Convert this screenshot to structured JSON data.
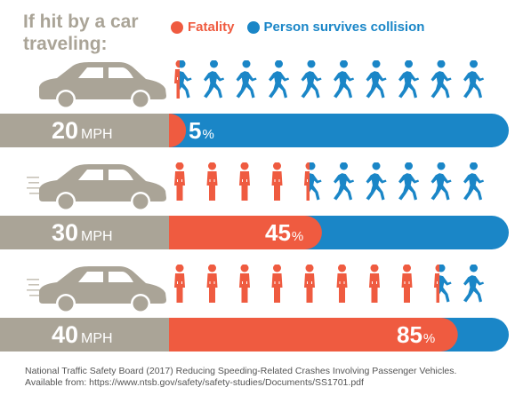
{
  "title": "If hit by a car\ntraveling:",
  "legend": {
    "fatality_label": "Fatality",
    "survive_label": "Person survives collision"
  },
  "colors": {
    "fatality": "#ef5b40",
    "survive": "#1a86c7",
    "gray": "#aaa497",
    "car": "#aaa497"
  },
  "rows": [
    {
      "speed": "20",
      "unit": "MPH",
      "percent": "5",
      "percent_symbol": "%",
      "fatality_fraction": 0.05,
      "moving": false
    },
    {
      "speed": "30",
      "unit": "MPH",
      "percent": "45",
      "percent_symbol": "%",
      "fatality_fraction": 0.45,
      "moving": true
    },
    {
      "speed": "40",
      "unit": "MPH",
      "percent": "85",
      "percent_symbol": "%",
      "fatality_fraction": 0.85,
      "moving": true
    }
  ],
  "source": {
    "line1": "National Traffic Safety Board (2017) Reducing Speeding-Related Crashes Involving Passenger Vehicles.",
    "line2": "Available from: https://www.ntsb.gov/safety/safety-studies/Documents/SS1701.pdf"
  }
}
